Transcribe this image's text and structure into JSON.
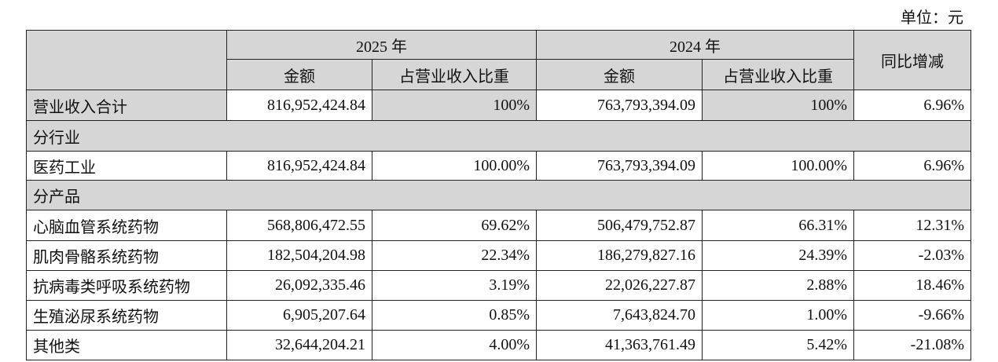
{
  "unit": "单位：元",
  "header": {
    "year_2025": "2025 年",
    "year_2024": "2024 年",
    "amount": "金额",
    "ratio": "占营业收入比重",
    "yoy": "同比增减"
  },
  "total": {
    "label": "营业收入合计",
    "a2025": "816,952,424.84",
    "r2025": "100%",
    "a2024": "763,793,394.09",
    "r2024": "100%",
    "yoy": "6.96%"
  },
  "section_industry": "分行业",
  "industry": [
    {
      "label": "医药工业",
      "a2025": "816,952,424.84",
      "r2025": "100.00%",
      "a2024": "763,793,394.09",
      "r2024": "100.00%",
      "yoy": "6.96%"
    }
  ],
  "section_product": "分产品",
  "products": [
    {
      "label": "心脑血管系统药物",
      "a2025": "568,806,472.55",
      "r2025": "69.62%",
      "a2024": "506,479,752.87",
      "r2024": "66.31%",
      "yoy": "12.31%"
    },
    {
      "label": "肌肉骨骼系统药物",
      "a2025": "182,504,204.98",
      "r2025": "22.34%",
      "a2024": "186,279,827.16",
      "r2024": "24.39%",
      "yoy": "-2.03%"
    },
    {
      "label": "抗病毒类呼吸系统药物",
      "a2025": "26,092,335.46",
      "r2025": "3.19%",
      "a2024": "22,026,227.87",
      "r2024": "2.88%",
      "yoy": "18.46%"
    },
    {
      "label": "生殖泌尿系统药物",
      "a2025": "6,905,207.64",
      "r2025": "0.85%",
      "a2024": "7,643,824.70",
      "r2024": "1.00%",
      "yoy": "-9.66%"
    },
    {
      "label": "其他类",
      "a2025": "32,644,204.21",
      "r2025": "4.00%",
      "a2024": "41,363,761.49",
      "r2024": "5.42%",
      "yoy": "-21.08%"
    }
  ]
}
